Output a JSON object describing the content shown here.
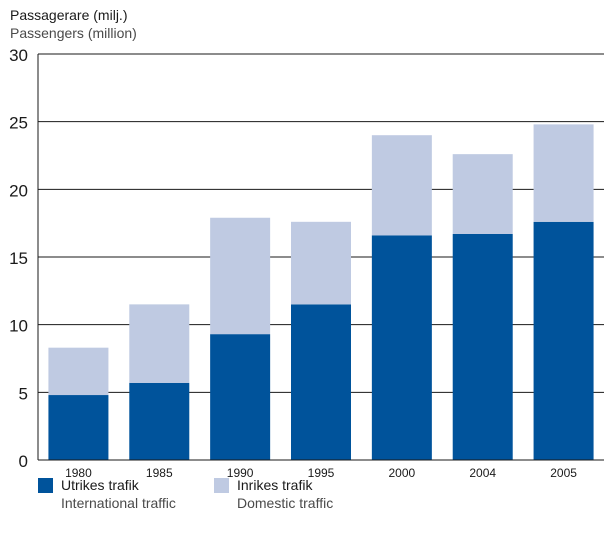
{
  "chart_data": {
    "type": "bar",
    "stacked": true,
    "ylabel_line1": "Passagerare (milj.)",
    "ylabel_line2": "Passengers (million)",
    "categories": [
      "1980",
      "1985",
      "1990",
      "1995",
      "2000",
      "2004",
      "2005"
    ],
    "ylim": [
      0,
      30
    ],
    "yticks": [
      "0",
      "5",
      "10",
      "15",
      "20",
      "25",
      "30"
    ],
    "grid": true,
    "series": [
      {
        "name": "Utrikes trafik",
        "name_en": "International traffic",
        "color": "#00539b",
        "values": [
          4.8,
          5.7,
          9.3,
          11.5,
          16.6,
          16.7,
          17.6
        ]
      },
      {
        "name": "Inrikes trafik",
        "name_en": "Domestic traffic",
        "color": "#bfcae2",
        "values": [
          3.5,
          5.8,
          8.6,
          6.1,
          7.4,
          5.9,
          7.2
        ]
      }
    ]
  }
}
